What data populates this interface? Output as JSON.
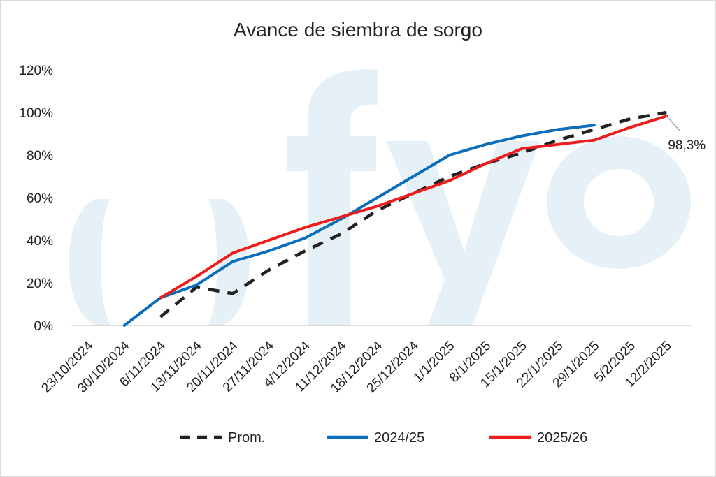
{
  "chart_data": {
    "type": "line",
    "title": "Avance de siembra de sorgo",
    "categories": [
      "23/10/2024",
      "30/10/2024",
      "6/11/2024",
      "13/11/2024",
      "20/11/2024",
      "27/11/2024",
      "4/12/2024",
      "11/12/2024",
      "18/12/2024",
      "25/12/2024",
      "1/1/2025",
      "8/1/2025",
      "15/1/2025",
      "22/1/2025",
      "29/1/2025",
      "5/2/2025",
      "12/2/2025"
    ],
    "y_ticks": [
      "0%",
      "20%",
      "40%",
      "60%",
      "80%",
      "100%",
      "120%"
    ],
    "ylim": [
      0,
      120
    ],
    "grid": false,
    "legend_position": "bottom",
    "series": [
      {
        "name": "Prom.",
        "color": "#222222",
        "dash": true,
        "values": [
          null,
          null,
          4,
          18,
          15,
          26,
          35,
          43,
          54,
          62,
          70,
          76,
          81,
          87,
          92,
          97,
          100
        ]
      },
      {
        "name": "2024/25",
        "color": "#0a6ebd",
        "dash": false,
        "values": [
          null,
          0,
          13,
          19,
          30,
          35,
          41,
          50,
          60,
          70,
          80,
          85,
          89,
          92,
          94,
          null,
          null
        ]
      },
      {
        "name": "2025/26",
        "color": "#ee1c1c",
        "dash": false,
        "values": [
          null,
          null,
          13,
          23,
          34,
          40,
          46,
          51,
          56,
          62,
          68,
          76,
          83,
          85,
          87,
          93,
          98.3
        ]
      }
    ],
    "annotation": {
      "text": "98,3%",
      "category": "12/2/2025",
      "value": 98.3
    }
  },
  "watermark": {
    "text": "fyo",
    "color": "#e6f1f7"
  }
}
